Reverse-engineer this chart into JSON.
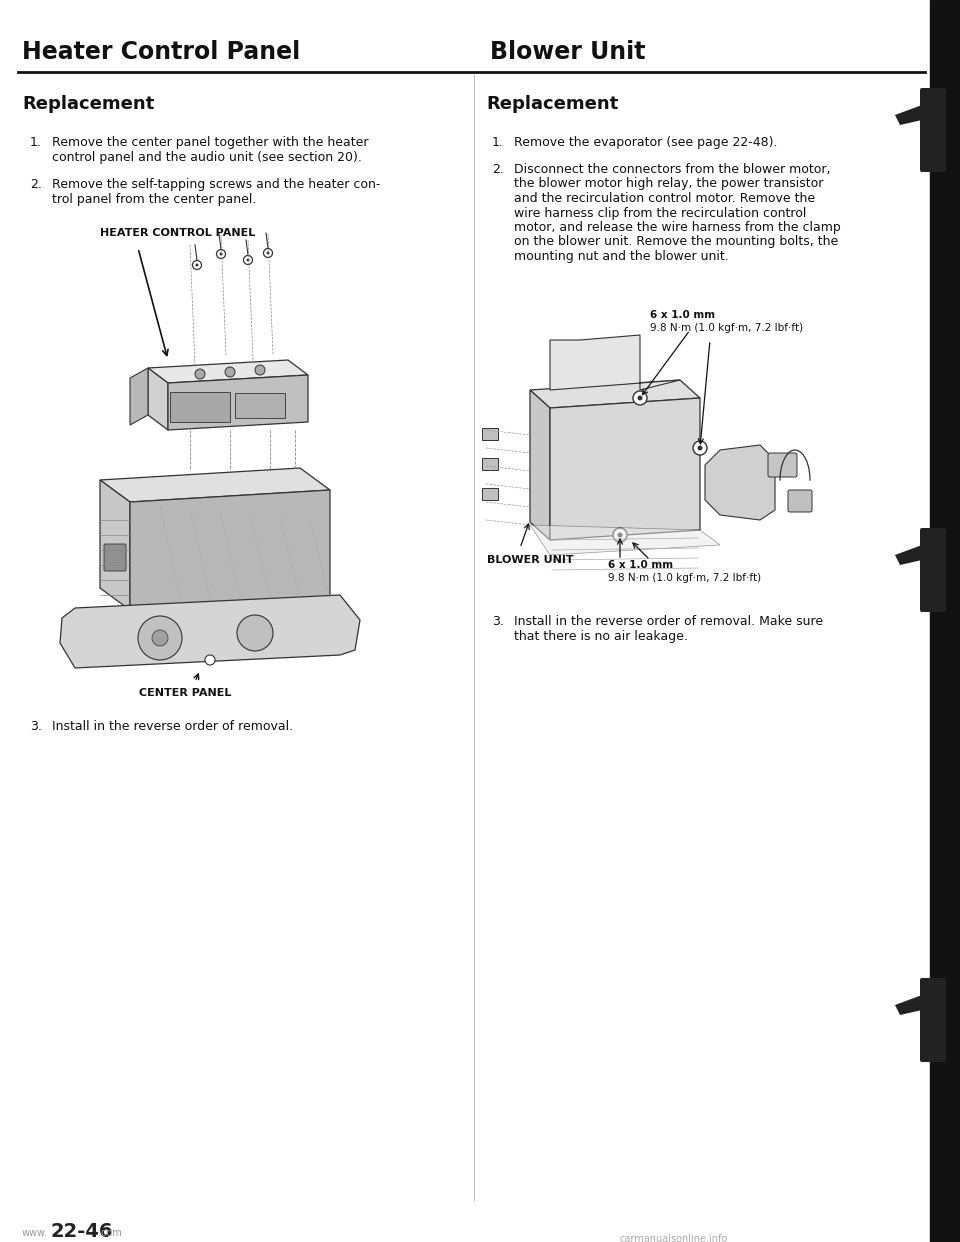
{
  "page_title_left": "Heater Control Panel",
  "page_title_right": "Blower Unit",
  "section_title": "Replacement",
  "bg_color": "#ffffff",
  "text_color": "#111111",
  "left_step1": [
    "Remove the center panel together with the heater",
    "control panel and the audio unit (see section 20)."
  ],
  "left_step2": [
    "Remove the self-tapping screws and the heater con-",
    "trol panel from the center panel."
  ],
  "left_step3": "Install in the reverse order of removal.",
  "left_label_top": "HEATER CONTROL PANEL",
  "left_label_bottom": "CENTER PANEL",
  "right_step1": "Remove the evaporator (see page 22-48).",
  "right_step2": [
    "Disconnect the connectors from the blower motor,",
    "the blower motor high relay, the power transistor",
    "and the recirculation control motor. Remove the",
    "wire harness clip from the recirculation control",
    "motor, and release the wire harness from the clamp",
    "on the blower unit. Remove the mounting bolts, the",
    "mounting nut and the blower unit."
  ],
  "right_step3": [
    "Install in the reverse order of removal. Make sure",
    "that there is no air leakage."
  ],
  "torque_top_1": "6 x 1.0 mm",
  "torque_top_2": "9.8 N·m (1.0 kgf·m, 7.2 lbf·ft)",
  "torque_bot_1": "6 x 1.0 mm",
  "torque_bot_2": "9.8 N·m (1.0 kgf·m, 7.2 lbf·ft)",
  "blower_label": "BLOWER UNIT",
  "footer_page": "22-46",
  "title_fs": 17,
  "sub_fs": 13,
  "body_fs": 9.0,
  "label_fs": 7.5,
  "small_fs": 7.5
}
